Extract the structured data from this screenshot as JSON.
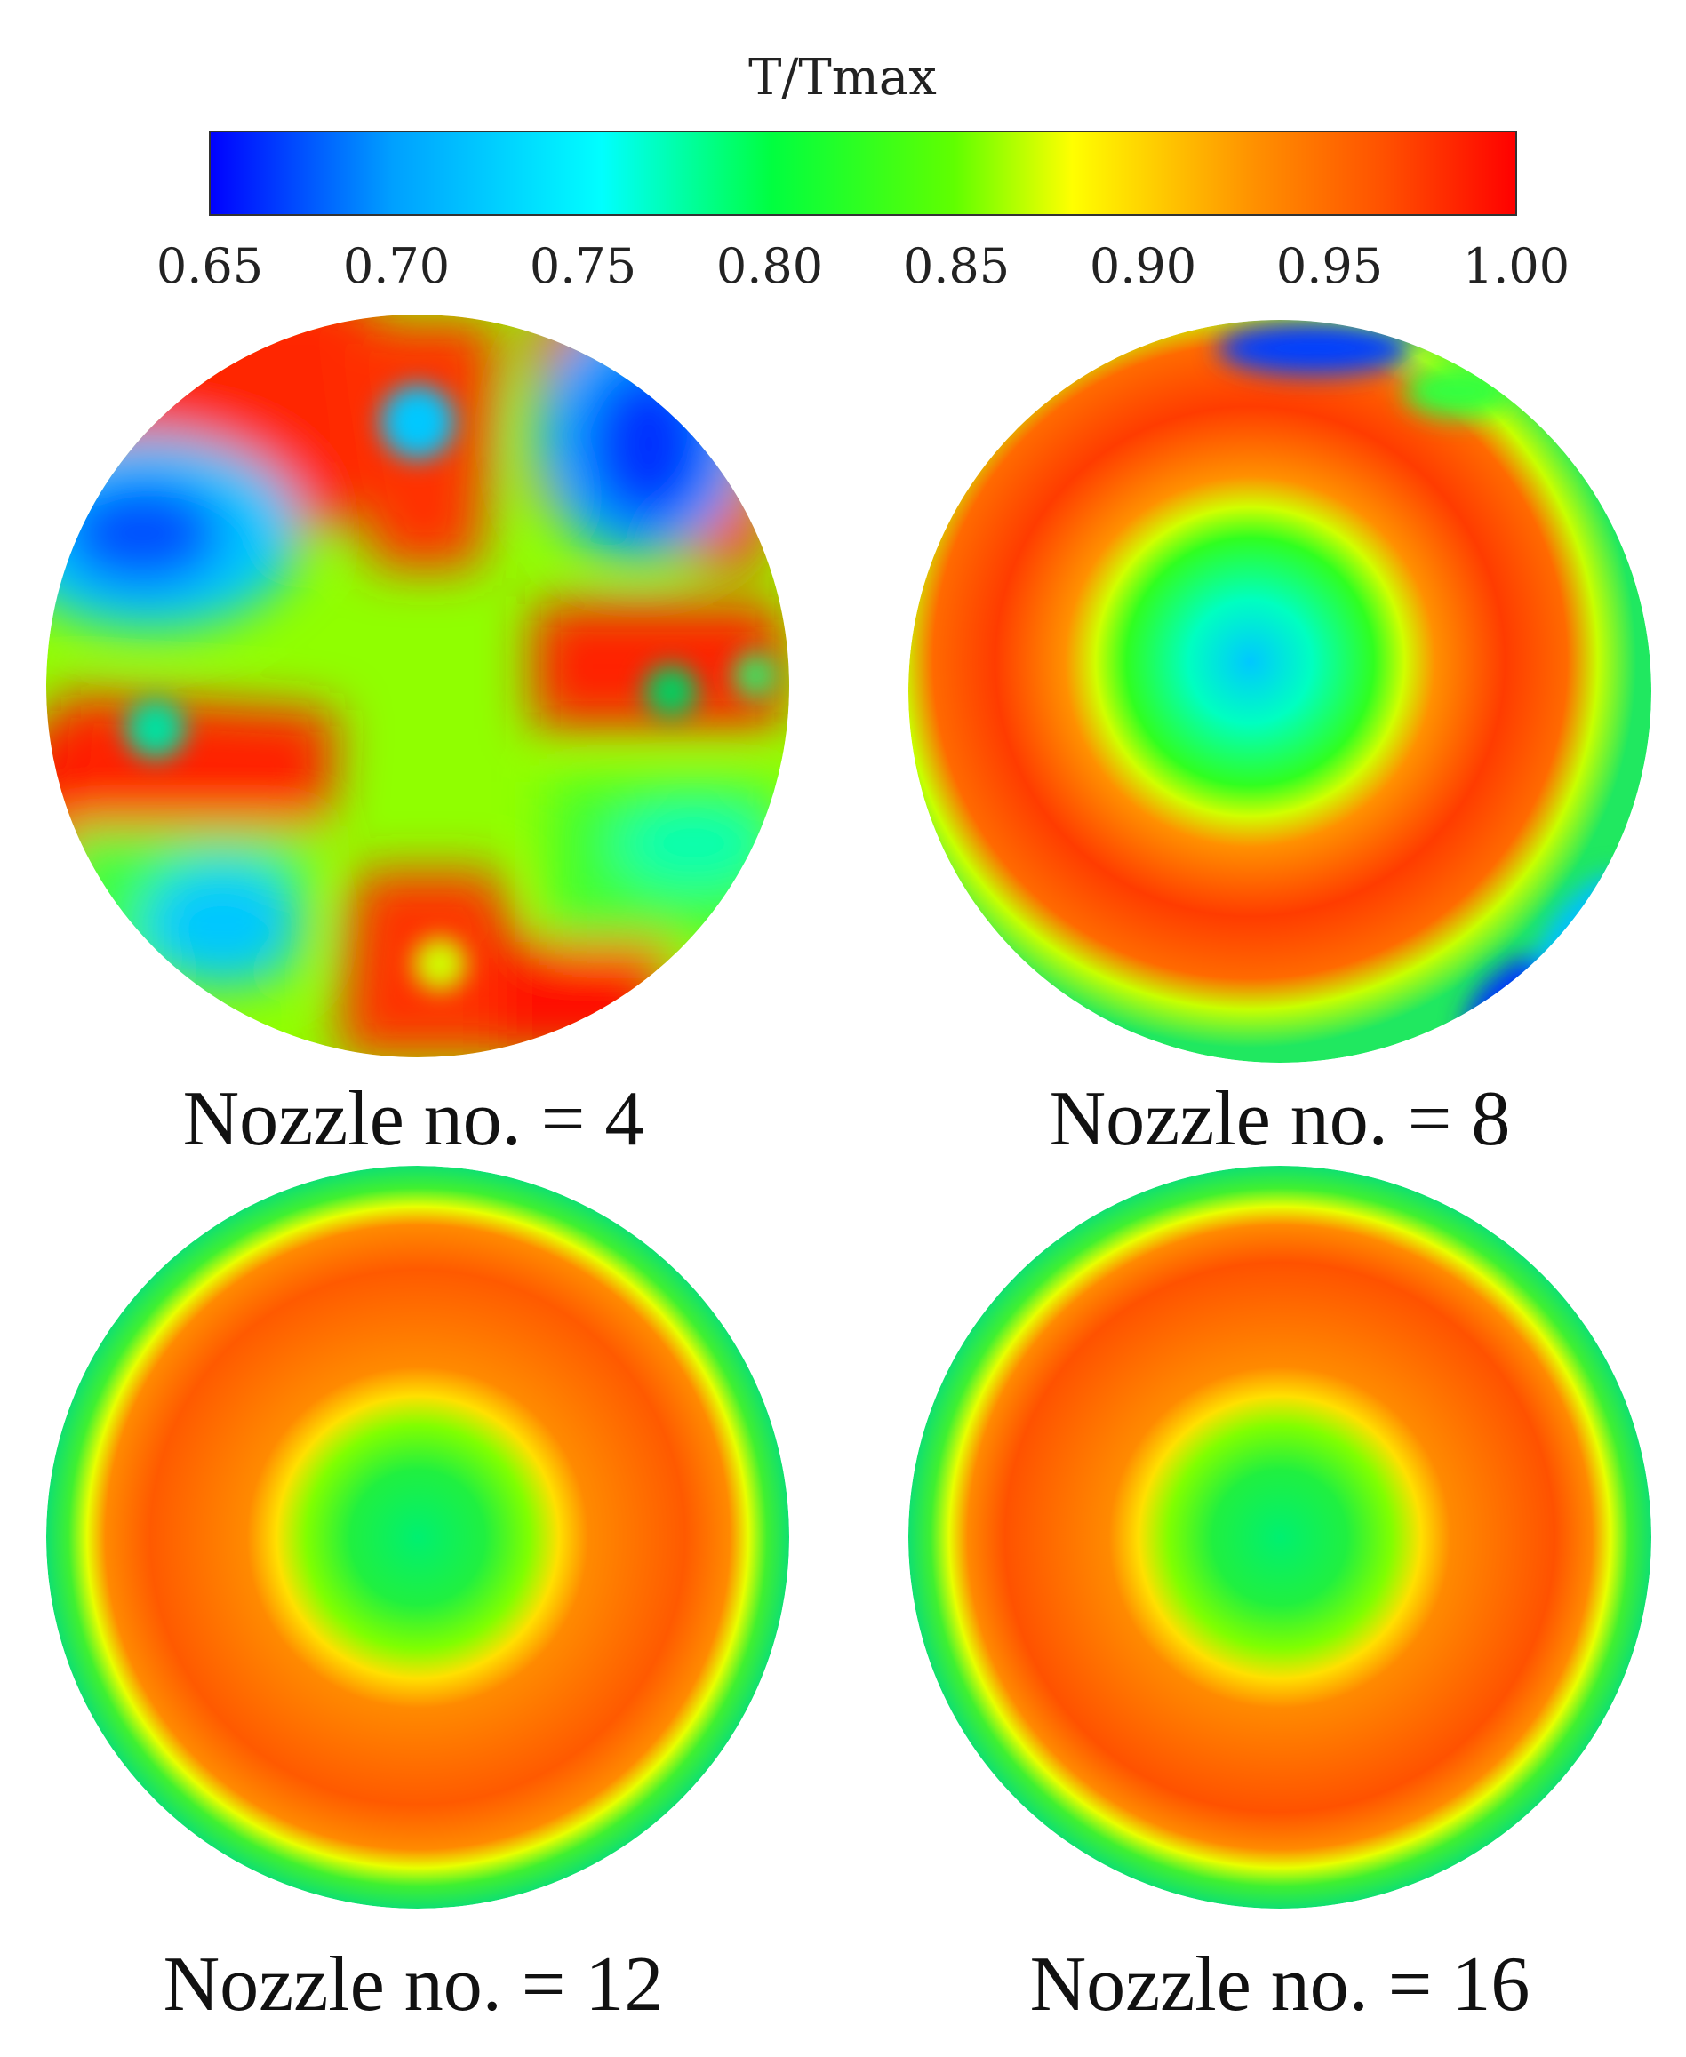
{
  "colorbar": {
    "title": "T/Tmax",
    "min": 0.65,
    "max": 1.0,
    "ticks": [
      "0.65",
      "0.70",
      "0.75",
      "0.80",
      "0.85",
      "0.90",
      "0.95",
      "1.00"
    ],
    "colormap": [
      "#0000ff",
      "#00a0ff",
      "#00ffff",
      "#00ff40",
      "#40ff00",
      "#ffff00",
      "#ff9000",
      "#ff5000",
      "#ff0000"
    ]
  },
  "panels": [
    {
      "label": "Nozzle no. = 4"
    },
    {
      "label": "Nozzle no. = 8"
    },
    {
      "label": "Nozzle no. = 12"
    },
    {
      "label": "Nozzle no. = 16"
    }
  ]
}
